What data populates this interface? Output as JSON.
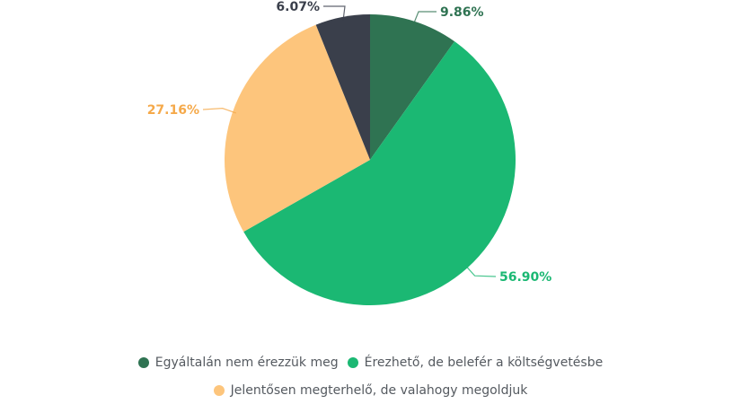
{
  "chart_data": {
    "type": "pie",
    "title": "",
    "categories": [
      "Egyáltalán nem érezzük meg",
      "Érezhető, de belefér a költségvetésbe",
      "Jelentősen megterhelő, de valahogy megoldjuk",
      ""
    ],
    "values": [
      9.86,
      56.9,
      27.16,
      6.07
    ],
    "labels": [
      "9.86%",
      "56.90%",
      "27.16%",
      "6.07%"
    ],
    "colors": [
      "#2f7352",
      "#1bb873",
      "#fdc57c",
      "#3a3f4b"
    ],
    "start_angle": "12 o'clock, clockwise",
    "legend_position": "bottom"
  },
  "legend": {
    "items": [
      {
        "label": "Egyáltalán nem érezzük meg",
        "color": "#2f7352"
      },
      {
        "label": "Érezhető, de belefér a költségvetésbe",
        "color": "#1bb873"
      },
      {
        "label": "Jelentősen megterhelő, de valahogy megoldjuk",
        "color": "#fdc57c"
      }
    ]
  },
  "label_colors": [
    "#2f7352",
    "#1bb873",
    "#f5a94a",
    "#3a3f4b"
  ]
}
